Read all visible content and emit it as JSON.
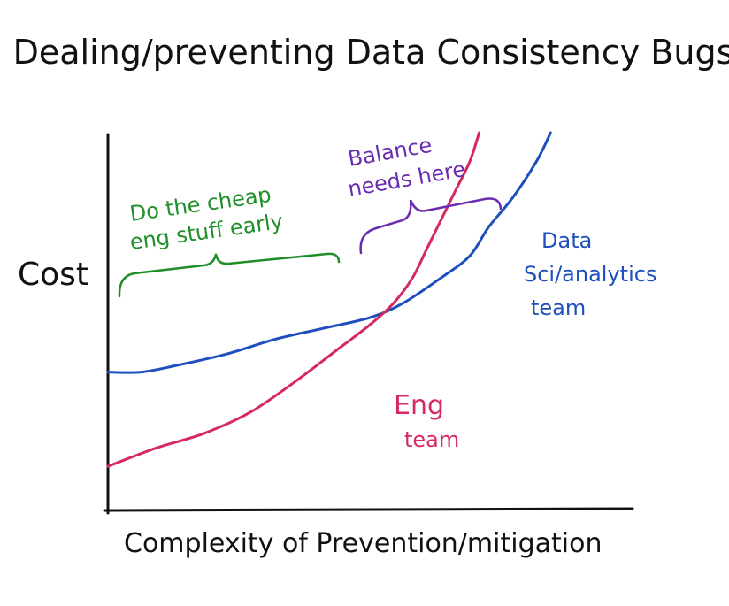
{
  "chart_data": {
    "type": "line",
    "title": "Dealing/preventing Data Consistency Bugs",
    "xlabel": "Complexity of Prevention/mitigation",
    "ylabel": "Cost",
    "xlim": [
      0,
      10
    ],
    "ylim": [
      0,
      10
    ],
    "grid": false,
    "series": [
      {
        "name": "Data Sci/analytics team",
        "color": "#1f4fbf",
        "x": [
          0,
          0.7,
          1.5,
          2.5,
          3.5,
          4.5,
          5.5,
          6.2,
          7.0,
          7.6,
          8.0,
          8.5,
          9.0,
          9.3
        ],
        "y": [
          3.4,
          3.4,
          3.6,
          3.9,
          4.3,
          4.6,
          4.9,
          5.3,
          6.0,
          6.6,
          7.4,
          8.2,
          9.2,
          10.0
        ]
      },
      {
        "name": "Eng team",
        "color": "#d62a5f",
        "x": [
          0,
          1.0,
          2.0,
          3.0,
          4.0,
          4.8,
          5.5,
          6.0,
          6.4,
          6.7,
          7.0,
          7.3,
          7.6,
          7.8
        ],
        "y": [
          0.8,
          1.3,
          1.7,
          2.3,
          3.2,
          4.0,
          4.7,
          5.3,
          6.0,
          6.8,
          7.6,
          8.4,
          9.2,
          10.0
        ]
      }
    ],
    "annotations": [
      {
        "text": "Do the cheap eng stuff early",
        "line1": "Do the cheap",
        "line2": "eng stuff early",
        "color": "#1f8f2a"
      },
      {
        "text": "Balance needs here",
        "line1": "Balance",
        "line2": "needs here",
        "color": "#6a2db0"
      },
      {
        "text": "Data Sci/analytics team",
        "line1": "Data",
        "line2": "Sci/analytics",
        "line3": "team",
        "color": "#1f4fbf"
      },
      {
        "text": "Eng team",
        "line1": "Eng",
        "line2": "team",
        "color": "#d62a5f"
      }
    ]
  }
}
